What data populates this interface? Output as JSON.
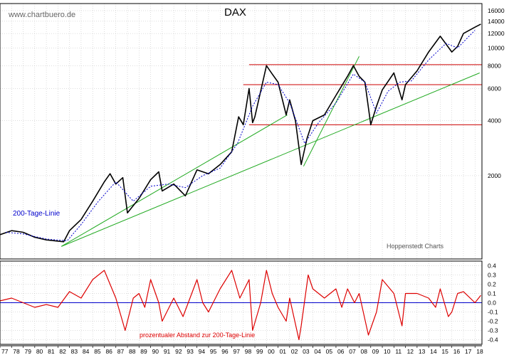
{
  "source_label": "www.chartbuero.de",
  "credit_label": "Hoppenstedt Charts",
  "colors": {
    "price": "#000000",
    "ma200": "#0000cc",
    "trend": "#22aa22",
    "level": "#cc0000",
    "osc": "#dd0000",
    "zero": "#0000cc",
    "grid": "#bbbbbb"
  },
  "chart_data": [
    {
      "type": "line",
      "title": "DAX",
      "scale": "log",
      "ylim": [
        700,
        17500
      ],
      "xlim": [
        1977,
        2018.6
      ],
      "yticks": [
        2000,
        4000,
        6000,
        8000,
        10000,
        12000,
        14000,
        16000
      ],
      "ylabels": [
        "2000",
        "4000",
        "6000",
        "8000",
        "10000",
        "12000",
        "14000",
        "16000"
      ],
      "legend_ma": "200-Tage-Linie",
      "grid": true,
      "series": [
        {
          "key": "price",
          "points": [
            [
              1977.0,
              950
            ],
            [
              1978.0,
              1000
            ],
            [
              1979.0,
              980
            ],
            [
              1980.0,
              920
            ],
            [
              1981.0,
              890
            ],
            [
              1982.5,
              870
            ],
            [
              1983.0,
              1000
            ],
            [
              1984.0,
              1150
            ],
            [
              1985.0,
              1450
            ],
            [
              1986.0,
              1850
            ],
            [
              1986.5,
              2050
            ],
            [
              1987.0,
              1800
            ],
            [
              1987.6,
              1950
            ],
            [
              1988.0,
              1250
            ],
            [
              1989.0,
              1500
            ],
            [
              1990.0,
              1900
            ],
            [
              1990.7,
              2100
            ],
            [
              1991.0,
              1650
            ],
            [
              1992.0,
              1800
            ],
            [
              1993.0,
              1550
            ],
            [
              1994.0,
              2150
            ],
            [
              1995.0,
              2050
            ],
            [
              1996.0,
              2300
            ],
            [
              1997.0,
              2700
            ],
            [
              1997.6,
              4200
            ],
            [
              1998.0,
              3800
            ],
            [
              1998.5,
              6000
            ],
            [
              1998.8,
              3900
            ],
            [
              1999.0,
              4200
            ],
            [
              2000.0,
              8000
            ],
            [
              2000.5,
              7200
            ],
            [
              2001.0,
              6500
            ],
            [
              2001.7,
              4300
            ],
            [
              2002.0,
              5200
            ],
            [
              2002.5,
              4000
            ],
            [
              2003.0,
              2300
            ],
            [
              2003.5,
              3200
            ],
            [
              2004.0,
              4000
            ],
            [
              2005.0,
              4300
            ],
            [
              2006.0,
              5500
            ],
            [
              2007.0,
              7000
            ],
            [
              2007.5,
              8000
            ],
            [
              2008.0,
              7000
            ],
            [
              2008.5,
              6500
            ],
            [
              2009.0,
              3800
            ],
            [
              2009.5,
              4800
            ],
            [
              2010.0,
              5900
            ],
            [
              2011.0,
              7300
            ],
            [
              2011.7,
              5200
            ],
            [
              2012.0,
              6300
            ],
            [
              2013.0,
              7500
            ],
            [
              2014.0,
              9500
            ],
            [
              2015.0,
              11600
            ],
            [
              2015.5,
              10500
            ],
            [
              2016.0,
              9500
            ],
            [
              2016.5,
              10200
            ],
            [
              2017.0,
              12000
            ],
            [
              2018.0,
              13000
            ],
            [
              2018.5,
              13500
            ]
          ]
        },
        {
          "key": "ma200",
          "points": [
            [
              1977.5,
              980
            ],
            [
              1979.0,
              960
            ],
            [
              1981.0,
              900
            ],
            [
              1982.8,
              880
            ],
            [
              1984.0,
              1080
            ],
            [
              1985.5,
              1450
            ],
            [
              1987.0,
              1850
            ],
            [
              1988.5,
              1450
            ],
            [
              1990.0,
              1750
            ],
            [
              1991.5,
              1800
            ],
            [
              1993.0,
              1720
            ],
            [
              1994.5,
              2000
            ],
            [
              1996.0,
              2200
            ],
            [
              1997.5,
              3000
            ],
            [
              1998.8,
              4800
            ],
            [
              2000.0,
              6500
            ],
            [
              2001.0,
              6300
            ],
            [
              2002.0,
              5000
            ],
            [
              2003.3,
              3000
            ],
            [
              2004.5,
              3900
            ],
            [
              2006.0,
              5000
            ],
            [
              2007.5,
              7200
            ],
            [
              2008.5,
              6500
            ],
            [
              2009.5,
              4400
            ],
            [
              2010.5,
              5800
            ],
            [
              2011.5,
              6500
            ],
            [
              2012.5,
              6600
            ],
            [
              2014.0,
              8600
            ],
            [
              2015.5,
              10600
            ],
            [
              2016.5,
              10000
            ],
            [
              2018.0,
              12500
            ]
          ]
        }
      ],
      "trendlines": [
        [
          [
            1982.3,
            820
          ],
          [
            2001.8,
            4300
          ]
        ],
        [
          [
            1982.3,
            820
          ],
          [
            2018.4,
            7300
          ]
        ],
        [
          [
            2003.2,
            2250
          ],
          [
            2008.0,
            9000
          ]
        ]
      ],
      "levels": [
        {
          "value": 8100,
          "from": 1998.5,
          "to": 2018.6
        },
        {
          "value": 6300,
          "from": 1998.0,
          "to": 2018.6
        },
        {
          "value": 3800,
          "from": 1998.5,
          "to": 2018.6
        }
      ]
    },
    {
      "type": "line",
      "title": "",
      "label": "prozentualer Abstand zur 200-Tage-Linie",
      "ylim": [
        -0.45,
        0.45
      ],
      "yticks": [
        0.4,
        0.3,
        0.2,
        0.1,
        0.0,
        -0.1,
        -0.2,
        -0.3,
        -0.4
      ],
      "ylabels": [
        "0.4",
        "0.3",
        "0.2",
        "0.1",
        "0.0",
        "-0.1",
        "-0.2",
        "-0.3",
        "-0.4"
      ],
      "grid": true,
      "series": [
        {
          "key": "osc",
          "points": [
            [
              1977.0,
              0.02
            ],
            [
              1978.0,
              0.05
            ],
            [
              1979.0,
              0.0
            ],
            [
              1980.0,
              -0.05
            ],
            [
              1981.0,
              -0.02
            ],
            [
              1982.0,
              -0.05
            ],
            [
              1983.0,
              0.12
            ],
            [
              1984.0,
              0.05
            ],
            [
              1985.0,
              0.25
            ],
            [
              1986.0,
              0.35
            ],
            [
              1987.0,
              0.05
            ],
            [
              1987.8,
              -0.3
            ],
            [
              1988.5,
              0.05
            ],
            [
              1989.0,
              0.1
            ],
            [
              1989.5,
              -0.05
            ],
            [
              1990.0,
              0.25
            ],
            [
              1990.7,
              0.0
            ],
            [
              1991.0,
              -0.2
            ],
            [
              1992.0,
              0.05
            ],
            [
              1992.8,
              -0.15
            ],
            [
              1994.0,
              0.25
            ],
            [
              1994.5,
              0.0
            ],
            [
              1995.0,
              -0.1
            ],
            [
              1996.0,
              0.15
            ],
            [
              1997.0,
              0.35
            ],
            [
              1997.7,
              0.05
            ],
            [
              1998.5,
              0.25
            ],
            [
              1998.8,
              -0.3
            ],
            [
              1999.5,
              0.0
            ],
            [
              2000.0,
              0.35
            ],
            [
              2000.5,
              0.1
            ],
            [
              2001.0,
              -0.05
            ],
            [
              2001.7,
              -0.2
            ],
            [
              2002.0,
              0.05
            ],
            [
              2002.8,
              -0.4
            ],
            [
              2003.0,
              -0.25
            ],
            [
              2003.6,
              0.3
            ],
            [
              2004.0,
              0.15
            ],
            [
              2005.0,
              0.05
            ],
            [
              2006.0,
              0.15
            ],
            [
              2006.5,
              -0.05
            ],
            [
              2007.0,
              0.15
            ],
            [
              2007.6,
              0.0
            ],
            [
              2008.0,
              0.1
            ],
            [
              2008.8,
              -0.35
            ],
            [
              2009.5,
              -0.1
            ],
            [
              2010.0,
              0.25
            ],
            [
              2011.0,
              0.1
            ],
            [
              2011.7,
              -0.25
            ],
            [
              2012.0,
              0.1
            ],
            [
              2013.0,
              0.1
            ],
            [
              2014.0,
              0.05
            ],
            [
              2014.6,
              -0.05
            ],
            [
              2015.0,
              0.15
            ],
            [
              2015.7,
              -0.15
            ],
            [
              2016.0,
              -0.1
            ],
            [
              2016.5,
              0.1
            ],
            [
              2017.0,
              0.12
            ],
            [
              2018.0,
              0.0
            ],
            [
              2018.5,
              0.08
            ]
          ]
        }
      ],
      "zero_line": 0.0
    }
  ],
  "x_axis": {
    "labels": [
      "77",
      "78",
      "79",
      "80",
      "81",
      "82",
      "83",
      "84",
      "85",
      "86",
      "87",
      "88",
      "89",
      "90",
      "91",
      "92",
      "93",
      "94",
      "95",
      "96",
      "97",
      "98",
      "99",
      "00",
      "01",
      "02",
      "03",
      "04",
      "05",
      "06",
      "07",
      "08",
      "09",
      "10",
      "11",
      "12",
      "13",
      "14",
      "15",
      "16",
      "17",
      "18"
    ]
  }
}
